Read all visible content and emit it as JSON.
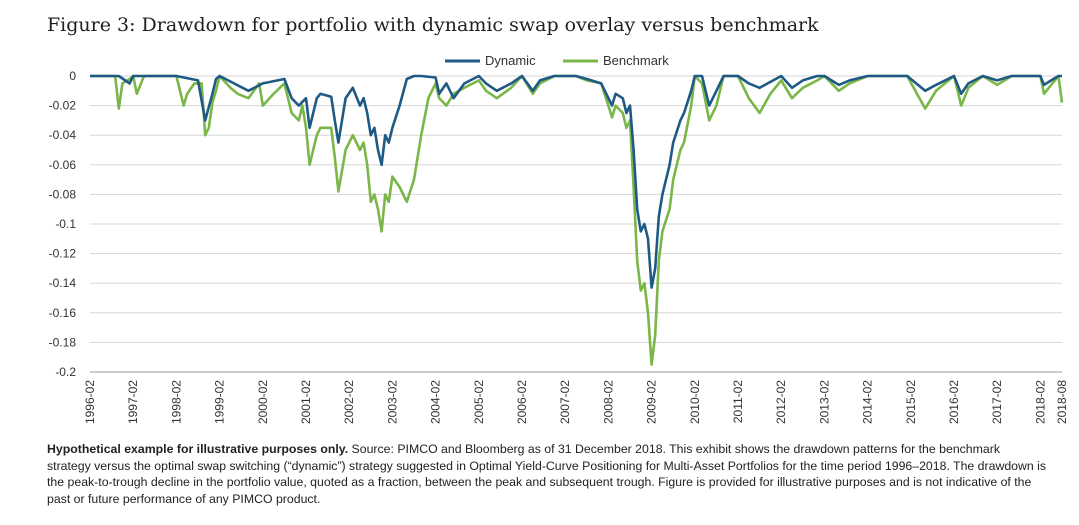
{
  "title": "Figure 3: Drawdown for portfolio with dynamic swap overlay versus benchmark",
  "footnote": {
    "bold": "Hypothetical example for illustrative purposes only.",
    "text": " Source: PIMCO and Bloomberg as of 31 December 2018. This exhibit shows the drawdown patterns for the benchmark strategy versus the optimal swap switching (“dynamic”) strategy suggested in Optimal Yield-Curve Positioning for Multi-Asset Portfolios for the time period 1996–2018. The drawdown is the peak-to-trough decline in the portfolio value, quoted as a fraction, between the peak and subsequent trough. Figure is provided for illustrative purposes and is not indicative of the past or future performance of any PIMCO product."
  },
  "chart_data": {
    "type": "line",
    "title": "Figure 3: Drawdown for portfolio with dynamic swap overlay versus benchmark",
    "xlabel": "",
    "ylabel": "",
    "ylim": [
      -0.2,
      0
    ],
    "xlim": [
      "1996-02",
      "2018-08"
    ],
    "grid": "horizontal",
    "legend": "top-center",
    "yticks": [
      "0",
      "-0.02",
      "-0.04",
      "-0.06",
      "-0.08",
      "-0.1",
      "-0.12",
      "-0.14",
      "-0.16",
      "-0.18",
      "-0.2"
    ],
    "xticks": [
      "1996-02",
      "1997-02",
      "1998-02",
      "1999-02",
      "2000-02",
      "2001-02",
      "2002-02",
      "2003-02",
      "2004-02",
      "2005-02",
      "2006-02",
      "2007-02",
      "2008-02",
      "2009-02",
      "2010-02",
      "2011-02",
      "2012-02",
      "2013-02",
      "2014-02",
      "2015-02",
      "2016-02",
      "2017-02",
      "2018-02",
      "2018-08"
    ],
    "series": [
      {
        "name": "Dynamic",
        "color": "#1f5a85",
        "points": [
          [
            "1996-02",
            0
          ],
          [
            "1996-10",
            0
          ],
          [
            "1997-01",
            -0.005
          ],
          [
            "1997-02",
            0
          ],
          [
            "1998-02",
            0
          ],
          [
            "1998-08",
            -0.003
          ],
          [
            "1998-10",
            -0.03
          ],
          [
            "1998-12",
            -0.012
          ],
          [
            "1999-01",
            -0.002
          ],
          [
            "1999-02",
            0
          ],
          [
            "1999-06",
            -0.005
          ],
          [
            "1999-10",
            -0.01
          ],
          [
            "2000-02",
            -0.005
          ],
          [
            "2000-08",
            -0.002
          ],
          [
            "2000-10",
            -0.015
          ],
          [
            "2000-12",
            -0.02
          ],
          [
            "2001-02",
            -0.015
          ],
          [
            "2001-03",
            -0.035
          ],
          [
            "2001-05",
            -0.015
          ],
          [
            "2001-06",
            -0.012
          ],
          [
            "2001-09",
            -0.014
          ],
          [
            "2001-10",
            -0.03
          ],
          [
            "2001-11",
            -0.045
          ],
          [
            "2002-01",
            -0.015
          ],
          [
            "2002-03",
            -0.008
          ],
          [
            "2002-05",
            -0.02
          ],
          [
            "2002-06",
            -0.015
          ],
          [
            "2002-07",
            -0.025
          ],
          [
            "2002-08",
            -0.04
          ],
          [
            "2002-09",
            -0.035
          ],
          [
            "2002-10",
            -0.05
          ],
          [
            "2002-11",
            -0.06
          ],
          [
            "2002-12",
            -0.04
          ],
          [
            "2003-01",
            -0.045
          ],
          [
            "2003-02",
            -0.035
          ],
          [
            "2003-04",
            -0.02
          ],
          [
            "2003-06",
            -0.002
          ],
          [
            "2003-08",
            0
          ],
          [
            "2003-10",
            0
          ],
          [
            "2004-02",
            -0.001
          ],
          [
            "2004-03",
            -0.012
          ],
          [
            "2004-05",
            -0.005
          ],
          [
            "2004-07",
            -0.015
          ],
          [
            "2004-10",
            -0.005
          ],
          [
            "2005-02",
            0
          ],
          [
            "2005-04",
            -0.005
          ],
          [
            "2005-07",
            -0.01
          ],
          [
            "2005-11",
            -0.005
          ],
          [
            "2006-02",
            0
          ],
          [
            "2006-05",
            -0.01
          ],
          [
            "2006-07",
            -0.003
          ],
          [
            "2006-11",
            0
          ],
          [
            "2007-02",
            0
          ],
          [
            "2007-05",
            0
          ],
          [
            "2007-08",
            -0.002
          ],
          [
            "2007-12",
            -0.005
          ],
          [
            "2008-02",
            -0.015
          ],
          [
            "2008-03",
            -0.02
          ],
          [
            "2008-04",
            -0.012
          ],
          [
            "2008-06",
            -0.015
          ],
          [
            "2008-07",
            -0.025
          ],
          [
            "2008-08",
            -0.02
          ],
          [
            "2008-09",
            -0.05
          ],
          [
            "2008-10",
            -0.09
          ],
          [
            "2008-11",
            -0.105
          ],
          [
            "2008-12",
            -0.1
          ],
          [
            "2009-01",
            -0.11
          ],
          [
            "2009-02",
            -0.143
          ],
          [
            "2009-03",
            -0.13
          ],
          [
            "2009-04",
            -0.095
          ],
          [
            "2009-05",
            -0.08
          ],
          [
            "2009-07",
            -0.06
          ],
          [
            "2009-08",
            -0.045
          ],
          [
            "2009-10",
            -0.03
          ],
          [
            "2009-11",
            -0.025
          ],
          [
            "2010-01",
            -0.01
          ],
          [
            "2010-02",
            0
          ],
          [
            "2010-04",
            0
          ],
          [
            "2010-06",
            -0.02
          ],
          [
            "2010-08",
            -0.01
          ],
          [
            "2010-10",
            0
          ],
          [
            "2011-02",
            0
          ],
          [
            "2011-05",
            -0.005
          ],
          [
            "2011-08",
            -0.008
          ],
          [
            "2011-11",
            -0.004
          ],
          [
            "2012-02",
            0
          ],
          [
            "2012-05",
            -0.008
          ],
          [
            "2012-08",
            -0.003
          ],
          [
            "2012-12",
            0
          ],
          [
            "2013-02",
            0
          ],
          [
            "2013-06",
            -0.006
          ],
          [
            "2013-09",
            -0.003
          ],
          [
            "2014-02",
            0
          ],
          [
            "2014-06",
            0
          ],
          [
            "2015-01",
            0
          ],
          [
            "2015-06",
            -0.01
          ],
          [
            "2015-09",
            -0.006
          ],
          [
            "2016-02",
            0
          ],
          [
            "2016-04",
            -0.012
          ],
          [
            "2016-06",
            -0.005
          ],
          [
            "2016-10",
            0
          ],
          [
            "2017-02",
            -0.003
          ],
          [
            "2017-06",
            0
          ],
          [
            "2018-02",
            0
          ],
          [
            "2018-03",
            -0.006
          ],
          [
            "2018-05",
            -0.003
          ],
          [
            "2018-07",
            0
          ],
          [
            "2018-08",
            0
          ]
        ]
      },
      {
        "name": "Benchmark",
        "color": "#7ab648",
        "points": [
          [
            "1996-02",
            0
          ],
          [
            "1996-09",
            0
          ],
          [
            "1996-10",
            -0.022
          ],
          [
            "1996-11",
            -0.005
          ],
          [
            "1997-01",
            -0.002
          ],
          [
            "1997-02",
            0
          ],
          [
            "1997-03",
            -0.012
          ],
          [
            "1997-05",
            0
          ],
          [
            "1998-02",
            0
          ],
          [
            "1998-04",
            -0.02
          ],
          [
            "1998-05",
            -0.012
          ],
          [
            "1998-07",
            -0.005
          ],
          [
            "1998-09",
            -0.005
          ],
          [
            "1998-10",
            -0.04
          ],
          [
            "1998-11",
            -0.035
          ],
          [
            "1998-12",
            -0.018
          ],
          [
            "1999-01",
            -0.01
          ],
          [
            "1999-02",
            0
          ],
          [
            "1999-05",
            -0.008
          ],
          [
            "1999-07",
            -0.012
          ],
          [
            "1999-10",
            -0.015
          ],
          [
            "2000-01",
            -0.005
          ],
          [
            "2000-02",
            -0.02
          ],
          [
            "2000-05",
            -0.012
          ],
          [
            "2000-08",
            -0.005
          ],
          [
            "2000-10",
            -0.025
          ],
          [
            "2000-12",
            -0.03
          ],
          [
            "2001-01",
            -0.02
          ],
          [
            "2001-02",
            -0.035
          ],
          [
            "2001-03",
            -0.06
          ],
          [
            "2001-05",
            -0.04
          ],
          [
            "2001-06",
            -0.035
          ],
          [
            "2001-09",
            -0.035
          ],
          [
            "2001-10",
            -0.055
          ],
          [
            "2001-11",
            -0.078
          ],
          [
            "2002-01",
            -0.05
          ],
          [
            "2002-03",
            -0.04
          ],
          [
            "2002-05",
            -0.05
          ],
          [
            "2002-06",
            -0.045
          ],
          [
            "2002-07",
            -0.06
          ],
          [
            "2002-08",
            -0.085
          ],
          [
            "2002-09",
            -0.08
          ],
          [
            "2002-10",
            -0.09
          ],
          [
            "2002-11",
            -0.105
          ],
          [
            "2002-12",
            -0.08
          ],
          [
            "2003-01",
            -0.085
          ],
          [
            "2003-02",
            -0.068
          ],
          [
            "2003-04",
            -0.075
          ],
          [
            "2003-06",
            -0.085
          ],
          [
            "2003-08",
            -0.07
          ],
          [
            "2003-10",
            -0.04
          ],
          [
            "2003-12",
            -0.015
          ],
          [
            "2004-02",
            -0.005
          ],
          [
            "2004-03",
            -0.015
          ],
          [
            "2004-05",
            -0.02
          ],
          [
            "2004-07",
            -0.012
          ],
          [
            "2004-10",
            -0.008
          ],
          [
            "2005-02",
            -0.003
          ],
          [
            "2005-04",
            -0.01
          ],
          [
            "2005-07",
            -0.015
          ],
          [
            "2005-11",
            -0.008
          ],
          [
            "2006-02",
            0
          ],
          [
            "2006-05",
            -0.012
          ],
          [
            "2006-07",
            -0.005
          ],
          [
            "2006-11",
            0
          ],
          [
            "2007-02",
            0
          ],
          [
            "2007-05",
            0
          ],
          [
            "2007-08",
            -0.003
          ],
          [
            "2007-12",
            -0.005
          ],
          [
            "2008-02",
            -0.02
          ],
          [
            "2008-03",
            -0.028
          ],
          [
            "2008-04",
            -0.02
          ],
          [
            "2008-06",
            -0.025
          ],
          [
            "2008-07",
            -0.035
          ],
          [
            "2008-08",
            -0.03
          ],
          [
            "2008-09",
            -0.075
          ],
          [
            "2008-10",
            -0.125
          ],
          [
            "2008-11",
            -0.145
          ],
          [
            "2008-12",
            -0.14
          ],
          [
            "2009-01",
            -0.16
          ],
          [
            "2009-02",
            -0.195
          ],
          [
            "2009-03",
            -0.175
          ],
          [
            "2009-04",
            -0.125
          ],
          [
            "2009-05",
            -0.105
          ],
          [
            "2009-07",
            -0.09
          ],
          [
            "2009-08",
            -0.07
          ],
          [
            "2009-10",
            -0.05
          ],
          [
            "2009-11",
            -0.045
          ],
          [
            "2010-01",
            -0.02
          ],
          [
            "2010-02",
            0
          ],
          [
            "2010-04",
            -0.005
          ],
          [
            "2010-06",
            -0.03
          ],
          [
            "2010-08",
            -0.02
          ],
          [
            "2010-10",
            0
          ],
          [
            "2011-02",
            0
          ],
          [
            "2011-05",
            -0.015
          ],
          [
            "2011-08",
            -0.025
          ],
          [
            "2011-11",
            -0.012
          ],
          [
            "2012-02",
            -0.003
          ],
          [
            "2012-05",
            -0.015
          ],
          [
            "2012-08",
            -0.008
          ],
          [
            "2012-12",
            -0.003
          ],
          [
            "2013-02",
            0
          ],
          [
            "2013-06",
            -0.01
          ],
          [
            "2013-09",
            -0.005
          ],
          [
            "2014-02",
            0
          ],
          [
            "2014-06",
            0
          ],
          [
            "2015-01",
            0
          ],
          [
            "2015-06",
            -0.022
          ],
          [
            "2015-09",
            -0.01
          ],
          [
            "2016-02",
            0
          ],
          [
            "2016-04",
            -0.02
          ],
          [
            "2016-06",
            -0.008
          ],
          [
            "2016-10",
            0
          ],
          [
            "2017-02",
            -0.006
          ],
          [
            "2017-06",
            0
          ],
          [
            "2018-02",
            0
          ],
          [
            "2018-03",
            -0.012
          ],
          [
            "2018-05",
            -0.006
          ],
          [
            "2018-07",
            0
          ],
          [
            "2018-08",
            -0.018
          ]
        ]
      }
    ]
  }
}
